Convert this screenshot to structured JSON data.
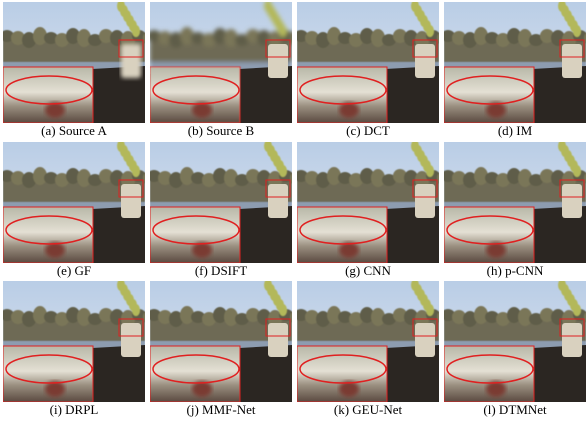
{
  "panels": [
    {
      "caption": "(a) Source A"
    },
    {
      "caption": "(b) Source B"
    },
    {
      "caption": "(c) DCT"
    },
    {
      "caption": "(d) IM"
    },
    {
      "caption": "(e) GF"
    },
    {
      "caption": "(f) DSIFT"
    },
    {
      "caption": "(g) CNN"
    },
    {
      "caption": "(h) p-CNN"
    },
    {
      "caption": "(i) DRPL"
    },
    {
      "caption": "(j) MMF-Net"
    },
    {
      "caption": "(k) GEU-Net"
    },
    {
      "caption": "(l) DTMNet"
    }
  ]
}
